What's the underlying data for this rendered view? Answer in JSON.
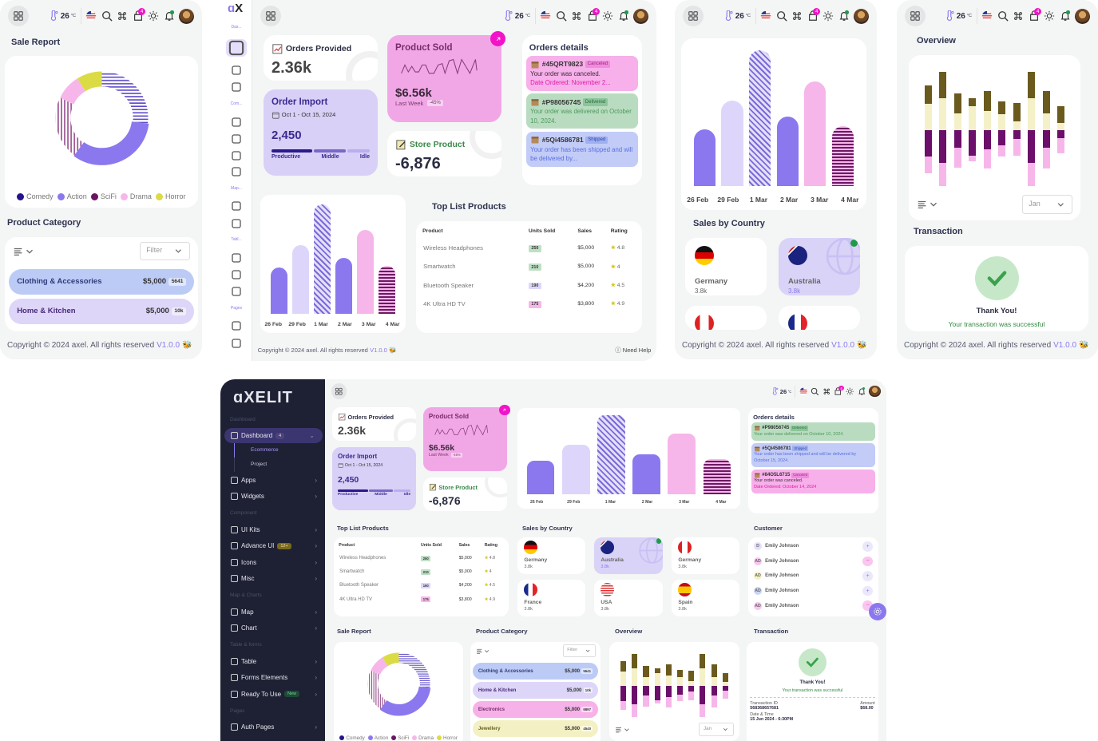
{
  "header": {
    "temperature": "26",
    "temp_unit": "°C",
    "cart_badge": "4"
  },
  "footer": {
    "copyright": "Copyright © 2024 axel. All rights reserved",
    "version": "V1.0.0",
    "help": "Need Help"
  },
  "sidebar": {
    "logo": "AXELIT",
    "mini_labels": [
      "Das...",
      "Com...",
      "Map...",
      "Tabl...",
      "Pages"
    ],
    "entries": [
      {
        "type": "section",
        "label": "Dashboard"
      },
      {
        "type": "item",
        "label": "Dashboard",
        "badge": "4",
        "active": true,
        "icon": "home-icon"
      },
      {
        "type": "sub",
        "label": "Ecommerce",
        "active": true
      },
      {
        "type": "sub",
        "label": "Project"
      },
      {
        "type": "item",
        "label": "Apps",
        "icon": "layers-icon"
      },
      {
        "type": "item",
        "label": "Widgets",
        "icon": "widgets-icon"
      },
      {
        "type": "section",
        "label": "Component"
      },
      {
        "type": "item",
        "label": "UI Kits",
        "icon": "briefcase-icon"
      },
      {
        "type": "item",
        "label": "Advance UI",
        "badge": "12+",
        "icon": "lock-icon"
      },
      {
        "type": "item",
        "label": "Icons",
        "icon": "icons-icon"
      },
      {
        "type": "item",
        "label": "Misc",
        "icon": "notebook-icon"
      },
      {
        "type": "section",
        "label": "Map & Charts"
      },
      {
        "type": "item",
        "label": "Map",
        "icon": "map-icon"
      },
      {
        "type": "item",
        "label": "Chart",
        "icon": "chart-icon"
      },
      {
        "type": "section",
        "label": "Table & forms"
      },
      {
        "type": "item",
        "label": "Table",
        "icon": "table-icon"
      },
      {
        "type": "item",
        "label": "Forms Elements",
        "icon": "form-icon"
      },
      {
        "type": "item",
        "label": "Ready To Use",
        "badge": "New",
        "icon": "grid-icon"
      },
      {
        "type": "section",
        "label": "Pages"
      },
      {
        "type": "item",
        "label": "Auth Pages",
        "icon": "auth-icon"
      }
    ]
  },
  "stats": {
    "orders_provided": {
      "title": "Orders Provided",
      "value": "2.36k"
    },
    "product_sold": {
      "title": "Product Sold",
      "value": "$6.56k",
      "period": "Last Week",
      "change": "-45%"
    },
    "order_import": {
      "title": "Order Import",
      "date_range": "Oct 1 - Oct 15, 2024",
      "value": "2,450",
      "labels": [
        "Productive",
        "Middle",
        "Idle"
      ]
    },
    "store_product": {
      "title": "Store Product",
      "value": "-6,876"
    }
  },
  "orders_details": {
    "title": "Orders details",
    "tablet": [
      {
        "id": "#45QRT9823",
        "status": "Canceled",
        "line1": "Your order was canceled.",
        "line2": "Date Ordered: November 2..."
      },
      {
        "id": "#P98056745",
        "status": "Delivered",
        "line1": "Your order was delivered on October 10, 2024.",
        "line2": ""
      },
      {
        "id": "#5Qi4586781",
        "status": "Shipped",
        "line1": "Your order has been shipped and will be delivered by...",
        "line2": ""
      }
    ],
    "desktop": [
      {
        "id": "#P98056745",
        "status": "Delivered",
        "line1": "Your order was delivered on October 10, 2024.",
        "line2": ""
      },
      {
        "id": "#5Qi4586781",
        "status": "Shipped",
        "line1": "Your order has been shipped and will be delivered by October 15, 2024.",
        "line2": ""
      },
      {
        "id": "#84O5L6715",
        "status": "Canceled",
        "line1": "Your order was canceled.",
        "line2": "Date Ordered: October 14, 2024"
      }
    ]
  },
  "top_products": {
    "title": "Top List Products",
    "headers": [
      "Product",
      "Units Sold",
      "Sales",
      "Rating"
    ],
    "rows": [
      {
        "product": "Wireless Headphones",
        "units": "250",
        "sales": "$5,000",
        "rating": "4.8",
        "color": "#bfe0c6"
      },
      {
        "product": "Smartwatch",
        "units": "210",
        "sales": "$5,000",
        "rating": "4",
        "color": "#bfe0c6"
      },
      {
        "product": "Bluetooth Speaker",
        "units": "190",
        "sales": "$4,200",
        "rating": "4.5",
        "color": "#dcd6fb"
      },
      {
        "product": "4K Ultra HD TV",
        "units": "175",
        "sales": "$3,800",
        "rating": "4.9",
        "color": "#f7b6ea"
      }
    ]
  },
  "sales_by_country": {
    "title": "Sales by Country",
    "items": [
      {
        "name": "Germany",
        "value": "3.8k",
        "flag": "germany-flag-icon"
      },
      {
        "name": "Australia",
        "value": "3.8k",
        "flag": "australia-flag-icon",
        "active": true
      },
      {
        "name": "Germany",
        "value": "3.8k",
        "flag": "canada-flag-icon"
      },
      {
        "name": "France",
        "value": "3.8k",
        "flag": "france-flag-icon"
      },
      {
        "name": "USA",
        "value": "3.8k",
        "flag": "usa-flag-icon"
      },
      {
        "name": "Spain",
        "value": "3.8k",
        "flag": "spain-flag-icon"
      }
    ]
  },
  "customer": {
    "title": "Customer",
    "items": [
      {
        "initials": "D",
        "name": "Emily Johnson",
        "action": "+",
        "color": "#e4e0fb"
      },
      {
        "initials": "AD",
        "name": "Emily Johnson",
        "action": "−",
        "color": "#f7c6ee"
      },
      {
        "initials": "AD",
        "name": "Emily Johnson",
        "action": "+",
        "color": "#f3f1c4"
      },
      {
        "initials": "AD",
        "name": "Emily Johnson",
        "action": "+",
        "color": "#c9d4f8"
      },
      {
        "initials": "AD",
        "name": "Emily Johnson",
        "action": "−",
        "color": "#f7c6ee"
      }
    ]
  },
  "sale_report": {
    "title": "Sale Report"
  },
  "product_category": {
    "title": "Product Category",
    "filter_placeholder": "Filter",
    "items": [
      {
        "name": "Clothing & Accessories",
        "amount": "$5,000",
        "tag": "5641",
        "bg": "#bccbf6",
        "fg": "#2e3a7a"
      },
      {
        "name": "Home & Kitchen",
        "amount": "$5,000",
        "tag": "10k",
        "bg": "#ddd6f8",
        "fg": "#4a2a7a"
      },
      {
        "name": "Electronics",
        "amount": "$5,000",
        "tag": "6897",
        "bg": "#f6b2e8",
        "fg": "#7a2a6a"
      },
      {
        "name": "Jewellery",
        "amount": "$5,000",
        "tag": "4540",
        "bg": "#f3f1c4",
        "fg": "#6b6420"
      }
    ]
  },
  "overview": {
    "title": "Overview",
    "select_value": "Jan"
  },
  "transaction": {
    "title": "Transaction",
    "thanks": "Thank You!",
    "message": "Your transaction was successful",
    "id_label": "Transaction ID",
    "id_value": "568368657681",
    "amount_label": "Amount",
    "amount_value": "$68.00",
    "date_label": "Date & Time",
    "date_value": "15 Jun 2024 - 6:30PM"
  },
  "chart_data": [
    {
      "type": "pie",
      "categories": [
        "Comedy",
        "Action",
        "SciFi",
        "Drama",
        "Horror"
      ],
      "values": [
        27,
        33,
        22,
        9,
        9
      ],
      "colors": [
        "#23148a",
        "#8b78ee",
        "#6b1463",
        "#f7b6ea",
        "#dbdc45"
      ],
      "legend": "bottom"
    },
    {
      "type": "bar",
      "categories": [
        "26 Feb",
        "29 Feb",
        "1 Mar",
        "2 Mar",
        "3 Mar",
        "4 Mar"
      ],
      "values": [
        42,
        63,
        100,
        51,
        77,
        44
      ],
      "colors": [
        "#8b78ee",
        "#ddd6fa",
        "#7a6ad8",
        "#8b78ee",
        "#f7b6ea",
        "#6b1a63"
      ],
      "grid": false
    },
    {
      "type": "bar",
      "stacked": true,
      "series": [
        {
          "values": [
            22,
            27,
            14,
            20,
            16,
            13,
            7,
            27,
            14,
            6
          ],
          "color": "#f4f1c8"
        },
        {
          "values": [
            16,
            22,
            17,
            7,
            17,
            11,
            16,
            22,
            19,
            14
          ],
          "color": "#6b5a1e"
        },
        {
          "values": [
            -23,
            -28,
            -15,
            -22,
            -17,
            -13,
            -8,
            -28,
            -15,
            -7
          ],
          "color": "#6b0f6a"
        },
        {
          "values": [
            -14,
            -20,
            -17,
            -5,
            -16,
            -10,
            -14,
            -20,
            -18,
            -13
          ],
          "color": "#f7b6ea"
        }
      ],
      "grid": false
    }
  ]
}
